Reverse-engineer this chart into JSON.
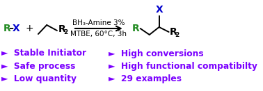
{
  "bg_color": "#ffffff",
  "purple_color": "#7B00FF",
  "green_color": "#228B22",
  "blue_color": "#0000CD",
  "black_color": "#000000",
  "reaction_line1": "BH₃-Amine 3%",
  "reaction_line2": "MTBE, 60°C, 3h",
  "bullet_items_left": [
    "►  Stable Initiator",
    "►  Safe process",
    "►  Low quantity"
  ],
  "bullet_items_right": [
    "►  High conversions",
    "►  High functional compatibilty",
    "►  29 examples"
  ],
  "fig_width": 3.78,
  "fig_height": 1.31,
  "dpi": 100
}
